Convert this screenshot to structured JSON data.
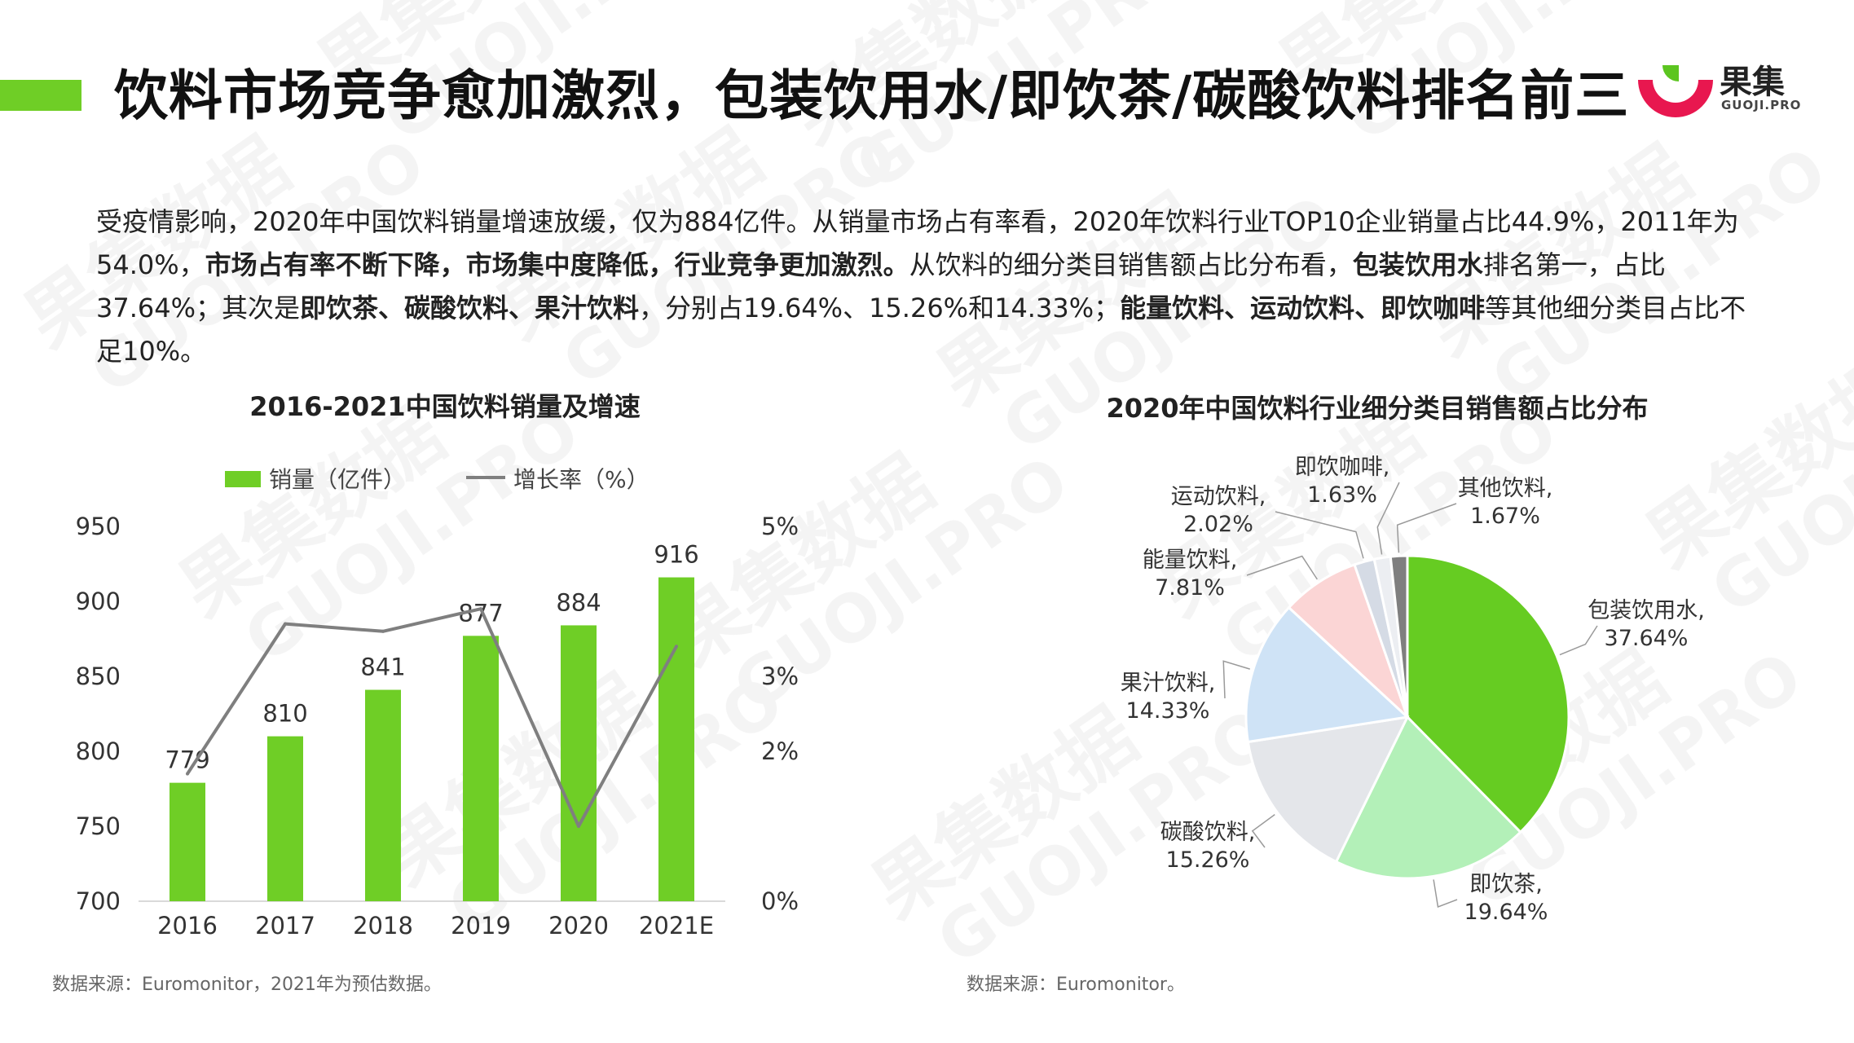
{
  "header": {
    "title": "饮料市场竞争愈加激烈，包装饮用水/即饮茶/碳酸饮料排名前三",
    "logo_cn": "果集",
    "logo_en": "GUOJI.PRO"
  },
  "intro": {
    "p1": "受疫情影响，2020年中国饮料销量增速放缓，仅为884亿件。从销量市场占有率看，2020年饮料行业TOP10企业销量占比44.9%，2011年为54.0%，",
    "b1": "市场占有率不断下降，市场集中度降低，行业竞争更加激烈。",
    "p2": "从饮料的细分类目销售额占比分布看，",
    "b2": "包装饮用水",
    "p3": "排名第一，占比37.64%；其次是",
    "b3": "即饮茶、碳酸饮料、果汁饮料",
    "p4": "，分别占19.64%、15.26%和14.33%；",
    "b4": "能量饮料、运动饮料、即饮咖啡",
    "p5": "等其他细分类目占比不足10%。"
  },
  "watermark": {
    "cn": "果集数据",
    "en": "GUOJI.PRO"
  },
  "colors": {
    "accent": "#6fce26",
    "line": "#7f7f7f"
  },
  "chart_data": [
    {
      "type": "bar",
      "title": "2016-2021中国饮料销量及增速",
      "categories": [
        "2016",
        "2017",
        "2018",
        "2019",
        "2020",
        "2021E"
      ],
      "series": [
        {
          "name": "销量（亿件）",
          "type": "bar",
          "axis": "left",
          "values": [
            779,
            810,
            841,
            877,
            884,
            916
          ]
        },
        {
          "name": "增长率（%）",
          "type": "line",
          "axis": "right",
          "values": [
            1.7,
            3.7,
            3.6,
            3.9,
            1.0,
            3.4
          ]
        }
      ],
      "y_left_ticks": [
        "950",
        "900",
        "850",
        "800",
        "750",
        "700"
      ],
      "y_right_ticks": [
        "5%",
        "3%",
        "2%",
        "0%"
      ],
      "ylim_left": [
        700,
        950
      ],
      "ylim_right": [
        0,
        5
      ],
      "legend": "top",
      "grid": false,
      "source": "数据来源：Euromonitor，2021年为预估数据。"
    },
    {
      "type": "pie",
      "title": "2020年中国饮料行业细分类目销售额占比分布",
      "slices": [
        {
          "name": "包装饮用水",
          "value": 37.64,
          "label": "37.64%",
          "color": "#66cc22"
        },
        {
          "name": "即饮茶",
          "value": 19.64,
          "label": "19.64%",
          "color": "#b3f0b8"
        },
        {
          "name": "碳酸饮料",
          "value": 15.26,
          "label": "15.26%",
          "color": "#e4e6ea"
        },
        {
          "name": "果汁饮料",
          "value": 14.33,
          "label": "14.33%",
          "color": "#cfe3f6"
        },
        {
          "name": "能量饮料",
          "value": 7.81,
          "label": "7.81%",
          "color": "#fbd5d5"
        },
        {
          "name": "运动饮料",
          "value": 2.02,
          "label": "2.02%",
          "color": "#d5dbe5"
        },
        {
          "name": "即饮咖啡",
          "value": 1.63,
          "label": "1.63%",
          "color": "#eceef2"
        },
        {
          "name": "其他饮料",
          "value": 1.67,
          "label": "1.67%",
          "color": "#7f7f7f"
        }
      ],
      "source": "数据来源：Euromonitor。"
    }
  ]
}
